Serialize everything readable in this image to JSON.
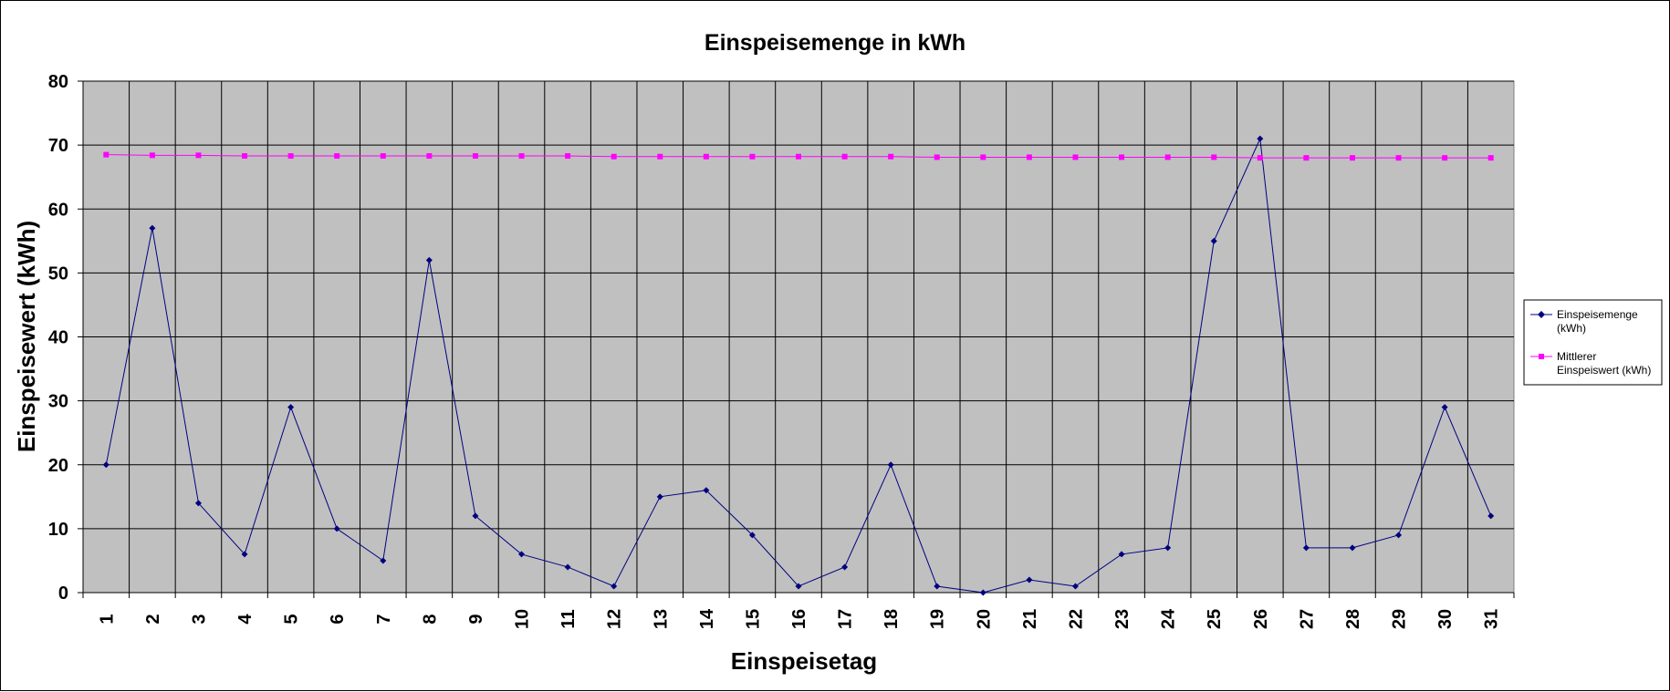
{
  "chart_data": {
    "type": "line",
    "title": "Einspeisemenge in kWh",
    "xlabel": "Einspeisetag",
    "ylabel": "Einspeisewert  (kWh)",
    "categories": [
      "1",
      "2",
      "3",
      "4",
      "5",
      "6",
      "7",
      "8",
      "9",
      "10",
      "11",
      "12",
      "13",
      "14",
      "15",
      "16",
      "17",
      "18",
      "19",
      "20",
      "21",
      "22",
      "23",
      "24",
      "25",
      "26",
      "27",
      "28",
      "29",
      "30",
      "31"
    ],
    "ylim": [
      0,
      80
    ],
    "yticks": [
      "0",
      "10",
      "20",
      "30",
      "40",
      "50",
      "60",
      "70",
      "80"
    ],
    "grid": true,
    "legend_position": "right",
    "plot_background": "#C0C0C0",
    "series": [
      {
        "name": "Einspeisemenge (kWh)",
        "color": "#000080",
        "marker": "diamond",
        "values": [
          20,
          57,
          14,
          6,
          29,
          10,
          5,
          52,
          12,
          6,
          4,
          1,
          15,
          16,
          9,
          1,
          4,
          20,
          1,
          0,
          2,
          1,
          6,
          7,
          55,
          71,
          7,
          7,
          9,
          29,
          12
        ]
      },
      {
        "name": "Mittlerer Einspeiswert (kWh)",
        "color": "#FF00FF",
        "marker": "square",
        "values": [
          68.5,
          68.4,
          68.4,
          68.3,
          68.3,
          68.3,
          68.3,
          68.3,
          68.3,
          68.3,
          68.3,
          68.2,
          68.2,
          68.2,
          68.2,
          68.2,
          68.2,
          68.2,
          68.1,
          68.1,
          68.1,
          68.1,
          68.1,
          68.1,
          68.1,
          68.0,
          68.0,
          68.0,
          68.0,
          68.0,
          68.0
        ]
      }
    ],
    "legend": {
      "entries": [
        {
          "lines": [
            "Einspeisemenge",
            "(kWh)"
          ]
        },
        {
          "lines": [
            "Mittlerer",
            "Einspeiswert (kWh)"
          ]
        }
      ]
    }
  }
}
